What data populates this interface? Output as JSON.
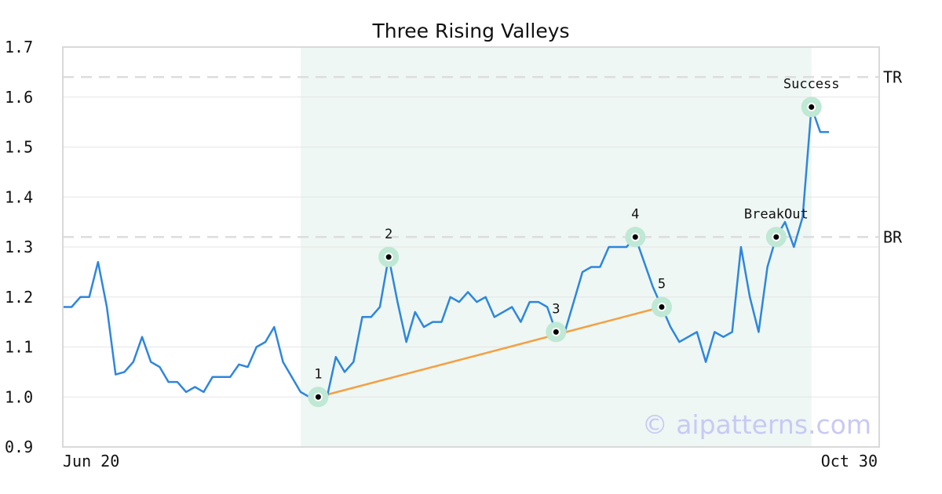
{
  "chart_data": {
    "type": "line",
    "title": "Three Rising Valleys",
    "xlabel": "",
    "ylabel": "",
    "ylim": [
      0.9,
      1.7
    ],
    "yticks": [
      "0.9",
      "1.0",
      "1.1",
      "1.2",
      "1.3",
      "1.4",
      "1.5",
      "1.6",
      "1.7"
    ],
    "xticks": [
      {
        "label": "Jun 20",
        "index": 0
      },
      {
        "label": "Oct 30",
        "index": 92
      }
    ],
    "grid": true,
    "highlight_range": [
      27,
      85
    ],
    "series": [
      {
        "name": "",
        "color": "#2e86de",
        "values": [
          1.18,
          1.18,
          1.2,
          1.2,
          1.27,
          1.18,
          1.045,
          1.05,
          1.07,
          1.12,
          1.07,
          1.06,
          1.03,
          1.03,
          1.01,
          1.02,
          1.01,
          1.04,
          1.04,
          1.04,
          1.065,
          1.06,
          1.1,
          1.11,
          1.14,
          1.07,
          1.04,
          1.01,
          1.0,
          1.0,
          1.0,
          1.08,
          1.05,
          1.07,
          1.16,
          1.16,
          1.18,
          1.28,
          1.19,
          1.11,
          1.17,
          1.14,
          1.15,
          1.15,
          1.2,
          1.19,
          1.21,
          1.19,
          1.2,
          1.16,
          1.17,
          1.18,
          1.15,
          1.19,
          1.19,
          1.18,
          1.13,
          1.13,
          1.19,
          1.25,
          1.26,
          1.26,
          1.3,
          1.3,
          1.3,
          1.32,
          1.27,
          1.22,
          1.18,
          1.14,
          1.11,
          1.12,
          1.13,
          1.07,
          1.13,
          1.12,
          1.13,
          1.3,
          1.2,
          1.13,
          1.26,
          1.32,
          1.35,
          1.3,
          1.36,
          1.58,
          1.53,
          1.53
        ]
      }
    ],
    "pattern_points": [
      {
        "label": "1",
        "index": 29,
        "value": 1.0
      },
      {
        "label": "2",
        "index": 37,
        "value": 1.28
      },
      {
        "label": "3",
        "index": 56,
        "value": 1.13
      },
      {
        "label": "4",
        "index": 65,
        "value": 1.32
      },
      {
        "label": "5",
        "index": 68,
        "value": 1.18
      },
      {
        "label": "BreakOut",
        "index": 81,
        "value": 1.32
      },
      {
        "label": "Success",
        "index": 85,
        "value": 1.58
      }
    ],
    "trend_line": {
      "from_index": 29,
      "from_value": 1.0,
      "to_index": 68,
      "to_value": 1.18,
      "color": "#f4a043"
    },
    "hlines": [
      {
        "label": "TR",
        "value": 1.64
      },
      {
        "label": "BR",
        "value": 1.32
      }
    ],
    "colors": {
      "line": "#2e86de",
      "highlight": "#eef7f3",
      "marker_halo": "#bfe8d5",
      "hline": "#dddddd",
      "trend": "#f4a043"
    },
    "watermark": "© aipatterns.com"
  }
}
